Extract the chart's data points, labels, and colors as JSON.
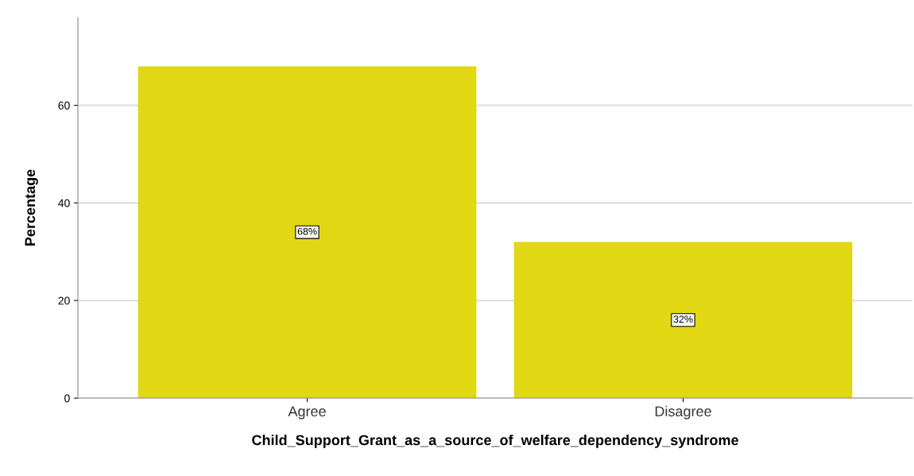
{
  "chart_data": {
    "type": "bar",
    "xlabel": "Child_Support_Grant_as_a_source_of_welfare_dependency_syndrome",
    "ylabel": "Percentage",
    "categories": [
      "Agree",
      "Disagree"
    ],
    "values": [
      68,
      32
    ],
    "value_labels": [
      "68%",
      "32%"
    ],
    "color": "#e1d712",
    "ylim": [
      0,
      78
    ],
    "yticks": [
      0,
      20,
      40,
      60
    ],
    "grid": "y",
    "legend": false
  }
}
